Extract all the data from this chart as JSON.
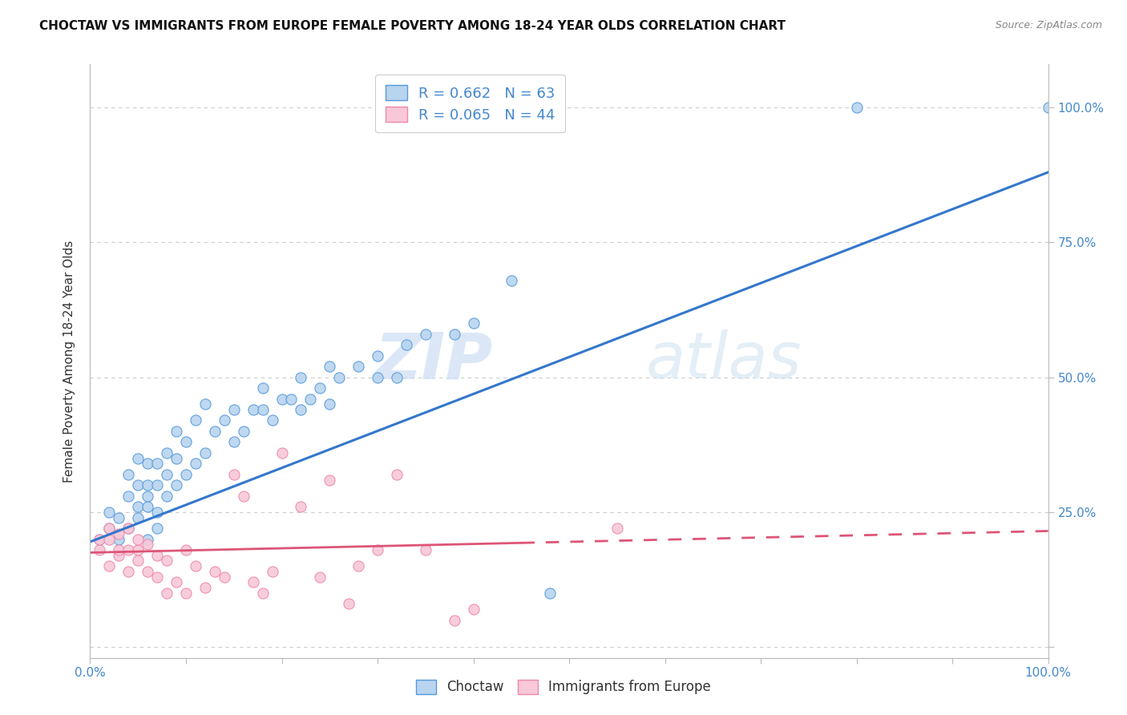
{
  "title": "CHOCTAW VS IMMIGRANTS FROM EUROPE FEMALE POVERTY AMONG 18-24 YEAR OLDS CORRELATION CHART",
  "source": "Source: ZipAtlas.com",
  "ylabel": "Female Poverty Among 18-24 Year Olds",
  "xlim": [
    0,
    1.0
  ],
  "ylim": [
    -0.02,
    1.08
  ],
  "x_ticks": [
    0.0,
    0.1,
    0.2,
    0.3,
    0.4,
    0.5,
    0.6,
    0.7,
    0.8,
    0.9,
    1.0
  ],
  "y_ticks": [
    0.0,
    0.25,
    0.5,
    0.75,
    1.0
  ],
  "y_tick_labels": [
    "",
    "25.0%",
    "50.0%",
    "75.0%",
    "100.0%"
  ],
  "watermark_zip": "ZIP",
  "watermark_atlas": "atlas",
  "background_color": "#ffffff",
  "grid_color": "#cccccc",
  "choctaw_color": "#b8d4ee",
  "choctaw_edge_color": "#5599dd",
  "choctaw_line_color": "#3377cc",
  "immigrants_color": "#f8c8d8",
  "immigrants_edge_color": "#ee88aa",
  "immigrants_line_color": "#dd5577",
  "choctaw_r": 0.662,
  "choctaw_n": 63,
  "immigrants_r": 0.065,
  "immigrants_n": 44,
  "choctaw_line_x0": 0.0,
  "choctaw_line_y0": 0.195,
  "choctaw_line_x1": 1.0,
  "choctaw_line_y1": 0.88,
  "immigrants_line_x0": 0.0,
  "immigrants_line_y0": 0.175,
  "immigrants_line_x1": 1.0,
  "immigrants_line_y1": 0.215,
  "choctaw_x": [
    0.01,
    0.02,
    0.02,
    0.03,
    0.03,
    0.04,
    0.04,
    0.04,
    0.05,
    0.05,
    0.05,
    0.05,
    0.06,
    0.06,
    0.06,
    0.06,
    0.06,
    0.07,
    0.07,
    0.07,
    0.07,
    0.08,
    0.08,
    0.08,
    0.09,
    0.09,
    0.09,
    0.1,
    0.1,
    0.11,
    0.11,
    0.12,
    0.12,
    0.13,
    0.14,
    0.15,
    0.15,
    0.16,
    0.17,
    0.18,
    0.18,
    0.19,
    0.2,
    0.21,
    0.22,
    0.22,
    0.23,
    0.24,
    0.25,
    0.25,
    0.26,
    0.28,
    0.3,
    0.3,
    0.32,
    0.33,
    0.35,
    0.38,
    0.4,
    0.44,
    0.48,
    0.8,
    1.0
  ],
  "choctaw_y": [
    0.2,
    0.22,
    0.25,
    0.2,
    0.24,
    0.28,
    0.32,
    0.22,
    0.26,
    0.3,
    0.35,
    0.24,
    0.2,
    0.26,
    0.3,
    0.34,
    0.28,
    0.25,
    0.3,
    0.34,
    0.22,
    0.28,
    0.32,
    0.36,
    0.3,
    0.35,
    0.4,
    0.32,
    0.38,
    0.34,
    0.42,
    0.36,
    0.45,
    0.4,
    0.42,
    0.44,
    0.38,
    0.4,
    0.44,
    0.44,
    0.48,
    0.42,
    0.46,
    0.46,
    0.44,
    0.5,
    0.46,
    0.48,
    0.45,
    0.52,
    0.5,
    0.52,
    0.5,
    0.54,
    0.5,
    0.56,
    0.58,
    0.58,
    0.6,
    0.68,
    0.1,
    1.0,
    1.0
  ],
  "immigrants_x": [
    0.01,
    0.01,
    0.02,
    0.02,
    0.02,
    0.03,
    0.03,
    0.03,
    0.04,
    0.04,
    0.04,
    0.05,
    0.05,
    0.05,
    0.06,
    0.06,
    0.07,
    0.07,
    0.08,
    0.08,
    0.09,
    0.1,
    0.1,
    0.11,
    0.12,
    0.13,
    0.14,
    0.15,
    0.16,
    0.17,
    0.18,
    0.19,
    0.2,
    0.22,
    0.24,
    0.25,
    0.27,
    0.28,
    0.3,
    0.32,
    0.35,
    0.38,
    0.4,
    0.55
  ],
  "immigrants_y": [
    0.18,
    0.2,
    0.15,
    0.2,
    0.22,
    0.17,
    0.18,
    0.21,
    0.14,
    0.18,
    0.22,
    0.16,
    0.18,
    0.2,
    0.14,
    0.19,
    0.13,
    0.17,
    0.1,
    0.16,
    0.12,
    0.1,
    0.18,
    0.15,
    0.11,
    0.14,
    0.13,
    0.32,
    0.28,
    0.12,
    0.1,
    0.14,
    0.36,
    0.26,
    0.13,
    0.31,
    0.08,
    0.15,
    0.18,
    0.32,
    0.18,
    0.05,
    0.07,
    0.22
  ]
}
